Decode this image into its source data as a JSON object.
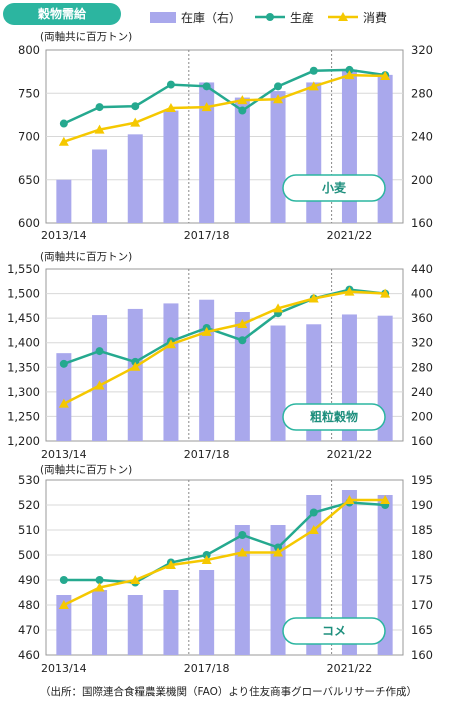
{
  "title": "穀物需給",
  "legend": {
    "stock": "在庫（右）",
    "production": "生産",
    "consumption": "消費"
  },
  "colors": {
    "stock": "#a9a8ec",
    "production": "#25a98f",
    "consumption": "#f5c800",
    "badge": "#2cb5a0"
  },
  "source": "（出所：国際連合食糧農業機関（FAO）より住友商事グローバルリサーチ作成）",
  "chart_data": [
    {
      "type": "bar+line",
      "label": "小麦",
      "unit_label": "(両軸共に百万トン)",
      "categories": [
        "2013/14",
        "2014/15",
        "2015/16",
        "2016/17",
        "2017/18",
        "2018/19",
        "2019/20",
        "2020/21",
        "2021/22",
        "2022/23"
      ],
      "x_tick_labels": [
        "2013/14",
        "2017/18",
        "2021/22"
      ],
      "y_left": {
        "min": 600,
        "max": 800,
        "ticks": [
          "600",
          "650",
          "700",
          "750",
          "800"
        ]
      },
      "y_right": {
        "min": 160,
        "max": 320,
        "ticks": [
          "160",
          "200",
          "240",
          "280",
          "320"
        ]
      },
      "series": [
        {
          "name": "在庫（右）",
          "axis": "right",
          "kind": "bar",
          "values": [
            200,
            228,
            242,
            264,
            290,
            276,
            282,
            290,
            302,
            297
          ]
        },
        {
          "name": "生産",
          "axis": "left",
          "kind": "line",
          "values": [
            715,
            734,
            735,
            760,
            758,
            730,
            758,
            776,
            777,
            771
          ]
        },
        {
          "name": "消費",
          "axis": "left",
          "kind": "line",
          "values": [
            694,
            708,
            716,
            733,
            734,
            742,
            743,
            758,
            771,
            770
          ]
        }
      ]
    },
    {
      "type": "bar+line",
      "label": "粗粒穀物",
      "unit_label": "(両軸共に百万トン)",
      "categories": [
        "2013/14",
        "2014/15",
        "2015/16",
        "2016/17",
        "2017/18",
        "2018/19",
        "2019/20",
        "2020/21",
        "2021/22",
        "2022/23"
      ],
      "x_tick_labels": [
        "2013/14",
        "2017/18",
        "2021/22"
      ],
      "y_left": {
        "min": 1200,
        "max": 1550,
        "ticks": [
          "1,200",
          "1,250",
          "1,300",
          "1,350",
          "1,400",
          "1,450",
          "1,500",
          "1,550"
        ]
      },
      "y_right": {
        "min": 160,
        "max": 440,
        "ticks": [
          "160",
          "200",
          "240",
          "280",
          "320",
          "360",
          "400",
          "440"
        ]
      },
      "series": [
        {
          "name": "在庫（右）",
          "axis": "right",
          "kind": "bar",
          "values": [
            303,
            365,
            375,
            384,
            390,
            370,
            348,
            350,
            366,
            364
          ]
        },
        {
          "name": "生産",
          "axis": "left",
          "kind": "line",
          "values": [
            1357,
            1383,
            1361,
            1403,
            1430,
            1405,
            1460,
            1490,
            1508,
            1500
          ]
        },
        {
          "name": "消費",
          "axis": "left",
          "kind": "line",
          "values": [
            1276,
            1313,
            1351,
            1397,
            1422,
            1438,
            1470,
            1490,
            1504,
            1500
          ]
        }
      ]
    },
    {
      "type": "bar+line",
      "label": "コメ",
      "unit_label": "(両軸共に百万トン)",
      "categories": [
        "2013/14",
        "2014/15",
        "2015/16",
        "2016/17",
        "2017/18",
        "2018/19",
        "2019/20",
        "2020/21",
        "2021/22",
        "2022/23"
      ],
      "x_tick_labels": [
        "2013/14",
        "2017/18",
        "2021/22"
      ],
      "y_left": {
        "min": 460,
        "max": 530,
        "ticks": [
          "460",
          "470",
          "480",
          "490",
          "500",
          "510",
          "520",
          "530"
        ]
      },
      "y_right": {
        "min": 160,
        "max": 195,
        "ticks": [
          "160",
          "165",
          "170",
          "175",
          "180",
          "185",
          "190",
          "195"
        ]
      },
      "series": [
        {
          "name": "在庫（右）",
          "axis": "right",
          "kind": "bar",
          "values": [
            172,
            173,
            172,
            173,
            177,
            186,
            186,
            192,
            193,
            192
          ]
        },
        {
          "name": "生産",
          "axis": "left",
          "kind": "line",
          "values": [
            490,
            490,
            489,
            497,
            500,
            508,
            503,
            517,
            521,
            520
          ]
        },
        {
          "name": "消費",
          "axis": "left",
          "kind": "line",
          "values": [
            480,
            487,
            490,
            496,
            498,
            501,
            501,
            510,
            522,
            522
          ]
        }
      ]
    }
  ]
}
